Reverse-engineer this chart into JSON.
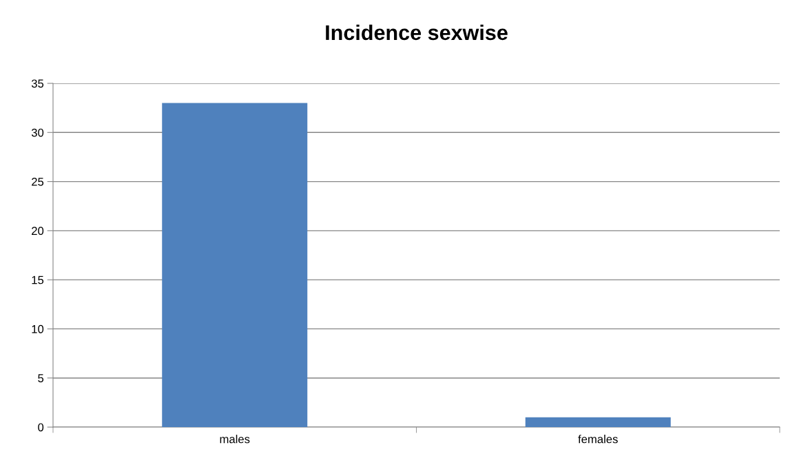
{
  "chart_data": {
    "type": "bar",
    "title": "Incidence sexwise",
    "categories": [
      "males",
      "females"
    ],
    "values": [
      33,
      1
    ],
    "color": "#4f81bd",
    "ylim": [
      0,
      35
    ],
    "yticks": [
      0,
      5,
      10,
      15,
      20,
      25,
      30,
      35
    ],
    "grid": "y",
    "legend": false
  }
}
